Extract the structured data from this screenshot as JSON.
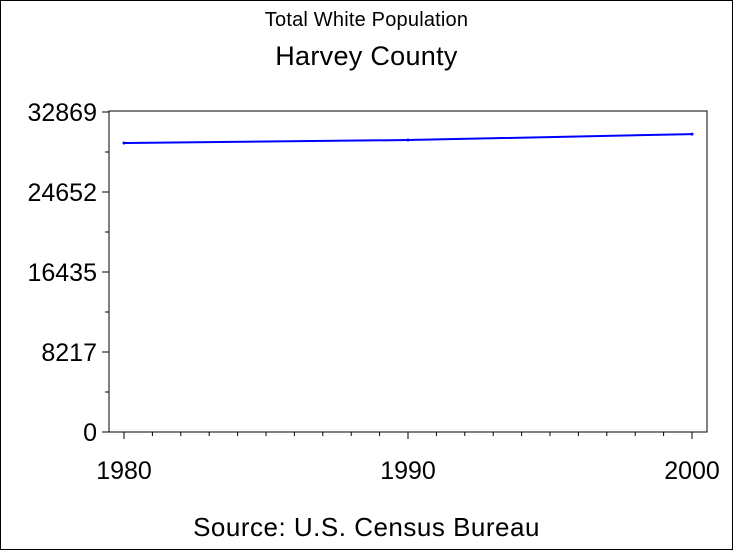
{
  "chart_data": {
    "type": "line",
    "title": "Total White Population",
    "subtitle": "Harvey County",
    "footnote": "Source: U.S. Census Bureau",
    "xlabel": "",
    "ylabel": "",
    "x_ticks": [
      1980,
      1990,
      2000
    ],
    "y_ticks": [
      0,
      8217,
      16435,
      24652,
      32869
    ],
    "xlim": [
      1980,
      2000
    ],
    "ylim": [
      0,
      32869
    ],
    "grid": false,
    "line_color": "#0000ff",
    "series": [
      {
        "x": [
          1980,
          1990,
          2000
        ],
        "values": [
          29680,
          29990,
          30600
        ]
      }
    ]
  }
}
